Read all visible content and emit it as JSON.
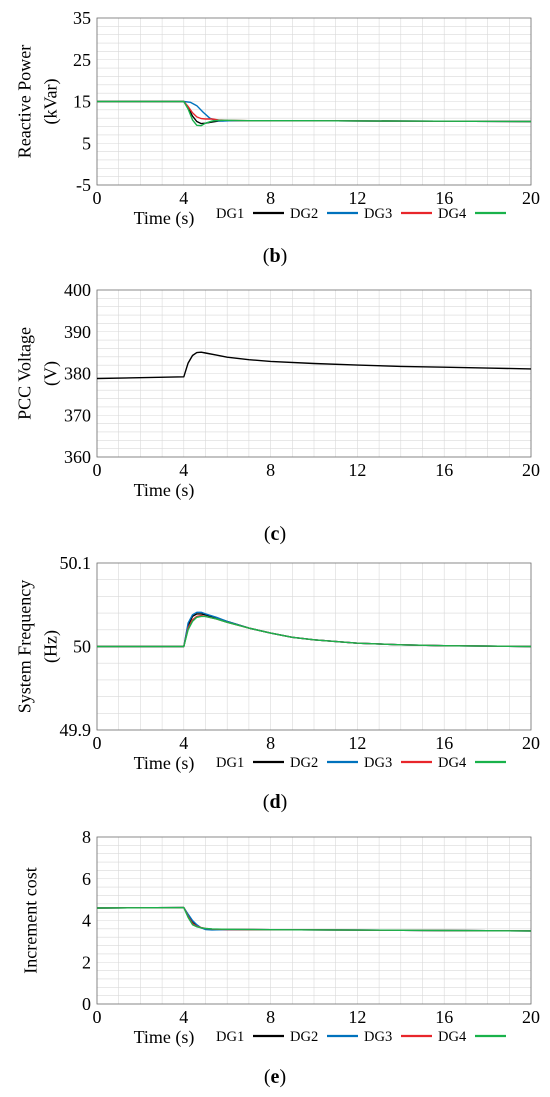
{
  "colors": {
    "DG1": "#000000",
    "DG2": "#0072bd",
    "DG3": "#e8262b",
    "DG4": "#19b24b",
    "grid": "#d9d9d9",
    "axis": "#000000"
  },
  "chart_data": [
    {
      "id": "b",
      "type": "line",
      "panel_label": "(b)",
      "panel_letter": "b",
      "ylabel_lines": [
        "Reactive Power",
        "(kVar)"
      ],
      "xlabel": "Time (s)",
      "xlim": [
        0,
        20
      ],
      "ylim": [
        -5,
        35
      ],
      "xticks": [
        0,
        4,
        8,
        12,
        16,
        20
      ],
      "yticks": [
        -5,
        5,
        15,
        25,
        35
      ],
      "ytick_labels": [
        "-5",
        "5",
        "15",
        "25",
        "35"
      ],
      "grid": true,
      "legend": [
        "DG1",
        "DG2",
        "DG3",
        "DG4"
      ],
      "series": [
        {
          "name": "DG1",
          "x": [
            0,
            4,
            4.2,
            4.4,
            4.6,
            4.8,
            5.0,
            5.3,
            5.6,
            6.0,
            7,
            10,
            14,
            20
          ],
          "y": [
            15,
            15,
            13.5,
            11.5,
            10.2,
            9.7,
            9.8,
            10.1,
            10.3,
            10.4,
            10.4,
            10.4,
            10.3,
            10.2
          ]
        },
        {
          "name": "DG2",
          "x": [
            0,
            4,
            4.3,
            4.6,
            4.9,
            5.2,
            5.5,
            5.8,
            6.2,
            7,
            10,
            14,
            20
          ],
          "y": [
            15,
            15,
            14.8,
            14.0,
            12.4,
            11.0,
            10.4,
            10.3,
            10.4,
            10.4,
            10.4,
            10.3,
            10.2
          ]
        },
        {
          "name": "DG3",
          "x": [
            0,
            4,
            4.2,
            4.4,
            4.6,
            4.8,
            5.0,
            5.3,
            5.6,
            6.0,
            7,
            10,
            14,
            20
          ],
          "y": [
            15,
            15,
            13.8,
            12.3,
            11.3,
            10.9,
            10.8,
            10.8,
            10.6,
            10.5,
            10.4,
            10.4,
            10.3,
            10.2
          ]
        },
        {
          "name": "DG4",
          "x": [
            0,
            4,
            4.2,
            4.4,
            4.6,
            4.8,
            5.0,
            5.3,
            5.6,
            6.0,
            7,
            10,
            14,
            20
          ],
          "y": [
            15,
            15,
            13.2,
            10.6,
            9.3,
            9.2,
            9.8,
            10.3,
            10.5,
            10.5,
            10.4,
            10.4,
            10.3,
            10.2
          ]
        }
      ]
    },
    {
      "id": "c",
      "type": "line",
      "panel_label": "(c)",
      "panel_letter": "c",
      "ylabel_lines": [
        "PCC Voltage",
        "(V)"
      ],
      "xlabel": "Time (s)",
      "xlim": [
        0,
        20
      ],
      "ylim": [
        360,
        400
      ],
      "xticks": [
        0,
        4,
        8,
        12,
        16,
        20
      ],
      "yticks": [
        360,
        370,
        380,
        390,
        400
      ],
      "ytick_labels": [
        "360",
        "370",
        "380",
        "390",
        "400"
      ],
      "grid": true,
      "legend": [],
      "series": [
        {
          "name": "",
          "x": [
            0,
            4,
            4.2,
            4.4,
            4.6,
            4.8,
            5.0,
            5.5,
            6,
            7,
            8,
            10,
            12,
            14,
            16,
            18,
            20
          ],
          "y": [
            378.8,
            379.2,
            382.5,
            384.3,
            385.0,
            385.1,
            384.9,
            384.4,
            383.9,
            383.3,
            382.9,
            382.4,
            382.0,
            381.7,
            381.5,
            381.3,
            381.1
          ]
        }
      ]
    },
    {
      "id": "d",
      "type": "line",
      "panel_label": "(d)",
      "panel_letter": "d",
      "ylabel_lines": [
        "System Frequency",
        "(Hz)"
      ],
      "xlabel": "Time (s)",
      "xlim": [
        0,
        20
      ],
      "ylim": [
        49.9,
        50.1
      ],
      "xticks": [
        0,
        4,
        8,
        12,
        16,
        20
      ],
      "yticks": [
        49.9,
        50,
        50.1
      ],
      "ytick_labels": [
        "49.9",
        "50",
        "50.1"
      ],
      "grid": true,
      "legend": [
        "DG1",
        "DG2",
        "DG3",
        "DG4"
      ],
      "series": [
        {
          "name": "DG1",
          "x": [
            0,
            4,
            4.2,
            4.4,
            4.6,
            4.8,
            5.0,
            5.5,
            6,
            7,
            8,
            9,
            10,
            12,
            14,
            16,
            18,
            20
          ],
          "y": [
            50,
            50,
            50.025,
            50.036,
            50.039,
            50.039,
            50.038,
            50.034,
            50.03,
            50.022,
            50.016,
            50.011,
            50.008,
            50.004,
            50.002,
            50.001,
            50.0005,
            50
          ]
        },
        {
          "name": "DG2",
          "x": [
            0,
            4,
            4.2,
            4.4,
            4.6,
            4.8,
            5.0,
            5.5,
            6,
            7,
            8,
            9,
            10,
            12,
            14,
            16,
            18,
            20
          ],
          "y": [
            50,
            50,
            50.028,
            50.038,
            50.041,
            50.041,
            50.039,
            50.035,
            50.03,
            50.022,
            50.016,
            50.011,
            50.008,
            50.004,
            50.002,
            50.001,
            50.0005,
            50
          ]
        },
        {
          "name": "DG3",
          "x": [
            0,
            4,
            4.2,
            4.4,
            4.6,
            4.8,
            5.0,
            5.5,
            6,
            7,
            8,
            9,
            10,
            12,
            14,
            16,
            18,
            20
          ],
          "y": [
            50,
            50,
            50.022,
            50.032,
            50.036,
            50.037,
            50.036,
            50.033,
            50.029,
            50.022,
            50.016,
            50.011,
            50.008,
            50.004,
            50.002,
            50.001,
            50.0005,
            50
          ]
        },
        {
          "name": "DG4",
          "x": [
            0,
            4,
            4.2,
            4.4,
            4.6,
            4.8,
            5.0,
            5.5,
            6,
            7,
            8,
            9,
            10,
            12,
            14,
            16,
            18,
            20
          ],
          "y": [
            50,
            50,
            50.02,
            50.03,
            50.035,
            50.036,
            50.036,
            50.033,
            50.029,
            50.022,
            50.016,
            50.011,
            50.008,
            50.004,
            50.002,
            50.001,
            50.0005,
            50
          ]
        }
      ]
    },
    {
      "id": "e",
      "type": "line",
      "panel_label": "(e)",
      "panel_letter": "e",
      "ylabel_lines": [
        "Increment cost"
      ],
      "xlabel": "Time (s)",
      "xlim": [
        0,
        20
      ],
      "ylim": [
        0,
        8
      ],
      "xticks": [
        0,
        4,
        8,
        12,
        16,
        20
      ],
      "yticks": [
        0,
        2,
        4,
        6,
        8
      ],
      "ytick_labels": [
        "0",
        "2",
        "4",
        "6",
        "8"
      ],
      "grid": true,
      "legend": [
        "DG1",
        "DG2",
        "DG3",
        "DG4"
      ],
      "series": [
        {
          "name": "DG1",
          "x": [
            0,
            4,
            4.2,
            4.4,
            4.6,
            4.8,
            5.0,
            5.3,
            6,
            8,
            12,
            16,
            20
          ],
          "y": [
            4.6,
            4.62,
            4.25,
            3.9,
            3.75,
            3.65,
            3.6,
            3.58,
            3.57,
            3.56,
            3.54,
            3.52,
            3.5
          ]
        },
        {
          "name": "DG2",
          "x": [
            0,
            4,
            4.2,
            4.4,
            4.6,
            4.8,
            5.0,
            5.3,
            6,
            8,
            12,
            16,
            20
          ],
          "y": [
            4.6,
            4.62,
            4.3,
            4.0,
            3.8,
            3.65,
            3.57,
            3.55,
            3.57,
            3.56,
            3.54,
            3.52,
            3.5
          ]
        },
        {
          "name": "DG3",
          "x": [
            0,
            4,
            4.2,
            4.4,
            4.6,
            4.8,
            5.0,
            5.3,
            6,
            8,
            12,
            16,
            20
          ],
          "y": [
            4.6,
            4.62,
            4.2,
            3.85,
            3.72,
            3.66,
            3.62,
            3.59,
            3.57,
            3.56,
            3.54,
            3.52,
            3.5
          ]
        },
        {
          "name": "DG4",
          "x": [
            0,
            4,
            4.2,
            4.4,
            4.6,
            4.8,
            5.0,
            5.3,
            6,
            8,
            12,
            16,
            20
          ],
          "y": [
            4.6,
            4.62,
            4.15,
            3.8,
            3.7,
            3.65,
            3.62,
            3.6,
            3.58,
            3.56,
            3.54,
            3.52,
            3.5
          ]
        }
      ]
    }
  ]
}
